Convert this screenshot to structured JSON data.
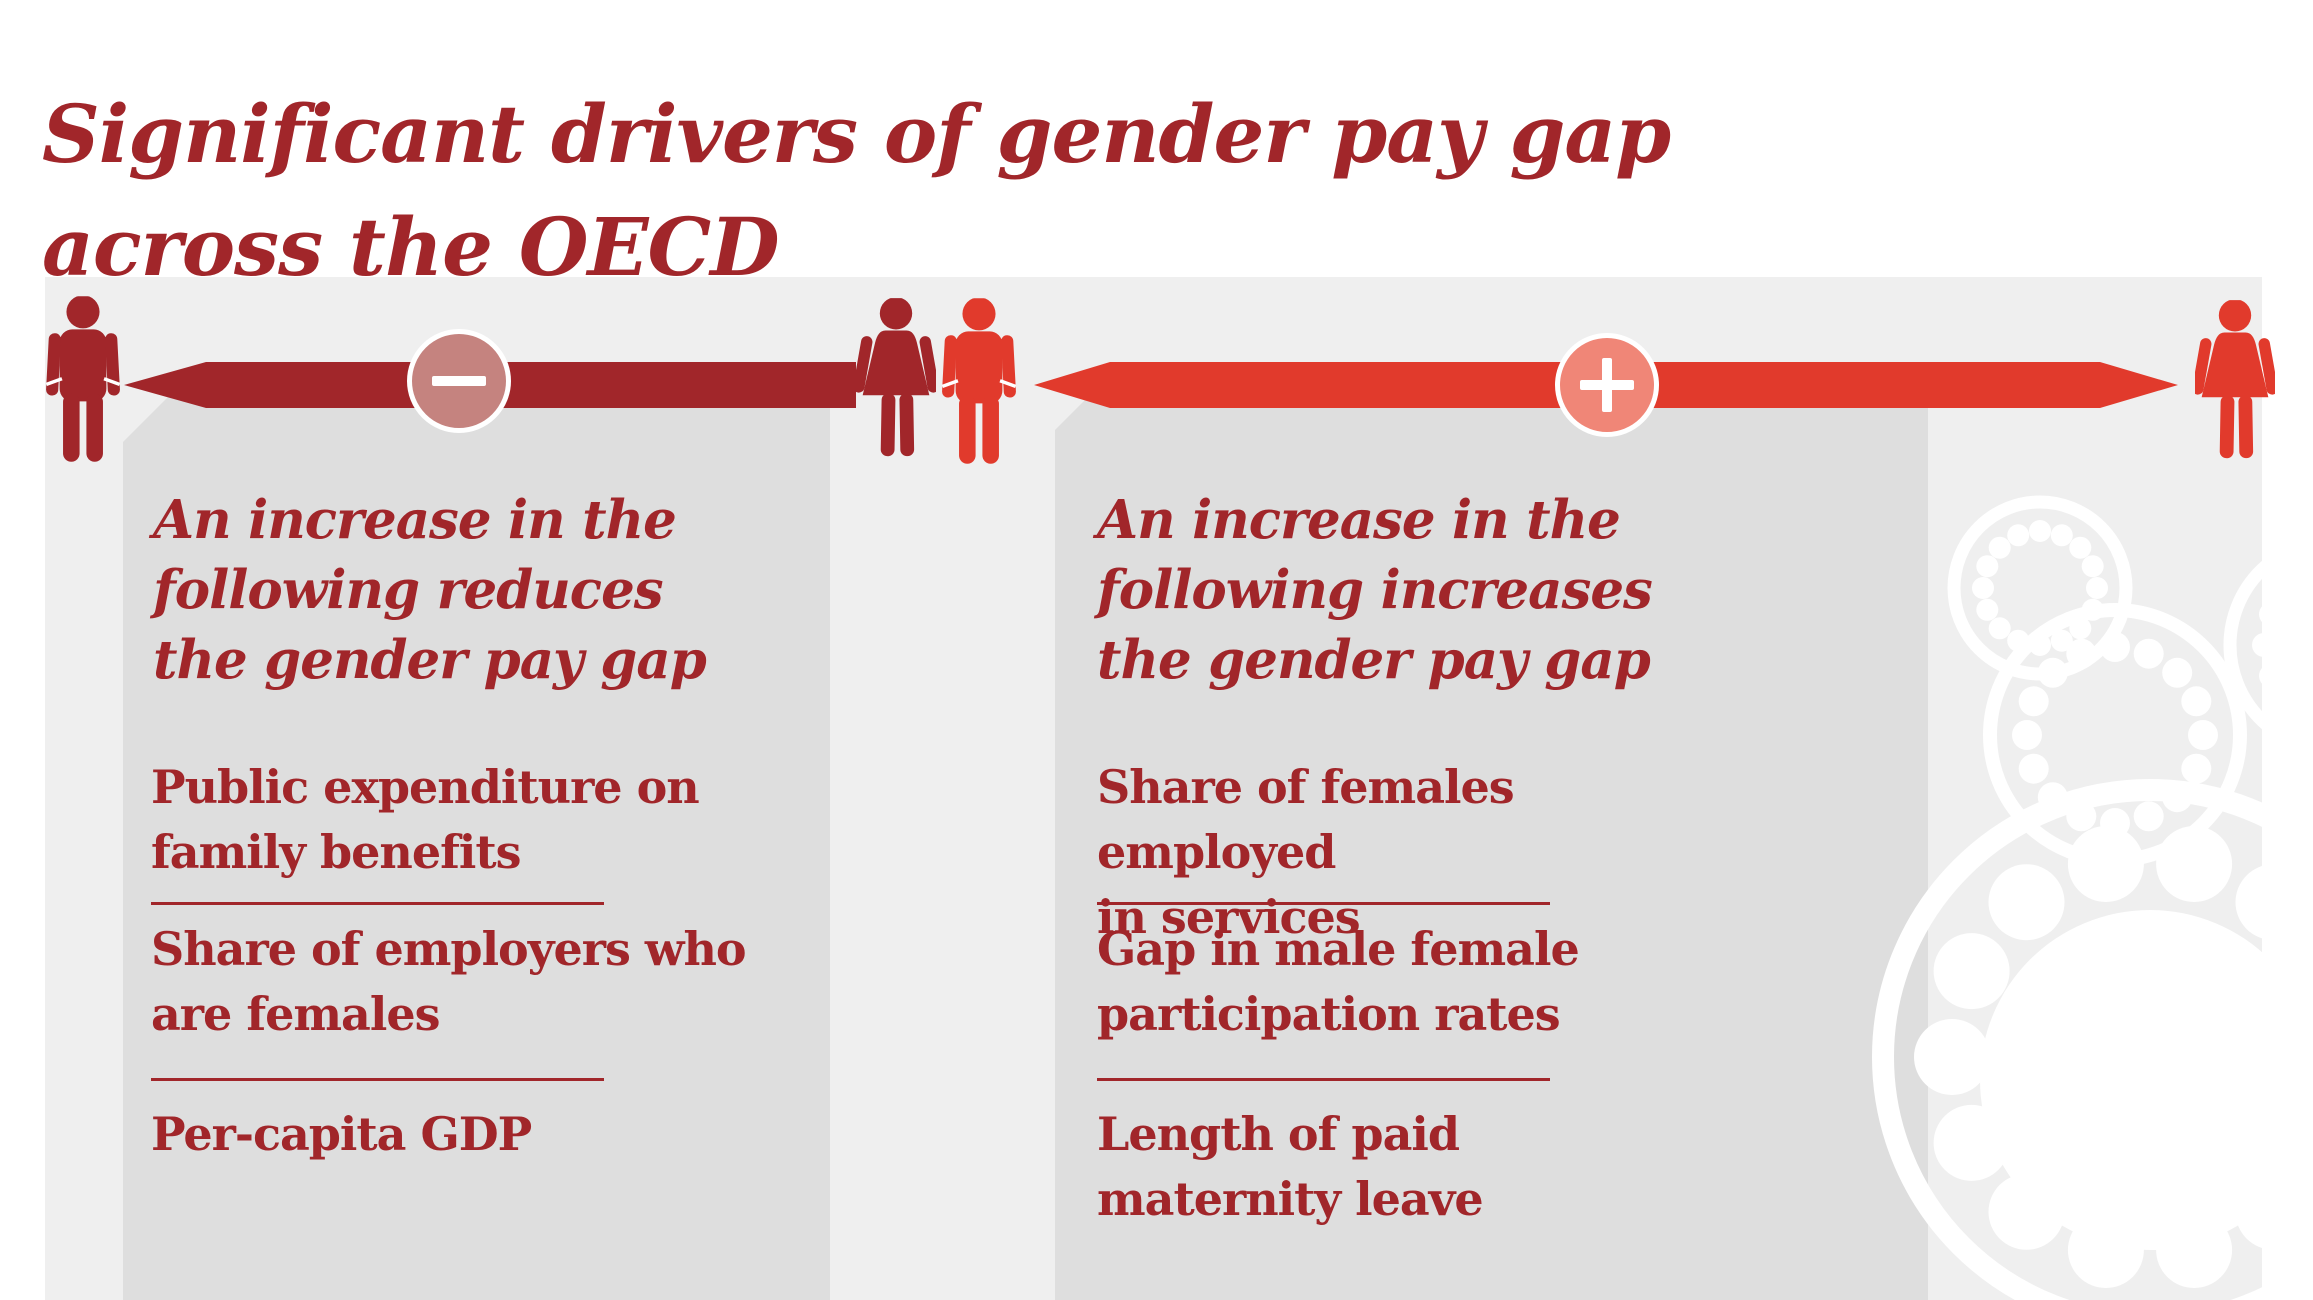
{
  "title": "Significant drivers of gender pay gap\nacross the OECD",
  "panels": {
    "reduce": {
      "sign": "minus",
      "heading": "An increase in the\nfollowing reduces\nthe gender pay gap",
      "items": [
        "Public expenditure on\nfamily benefits",
        "Share of employers who\nare females",
        "Per-capita GDP"
      ]
    },
    "increase": {
      "sign": "plus",
      "heading": "An increase in the\nfollowing increases\nthe gender pay gap",
      "items": [
        "Share of females employed\nin services",
        "Gap in male female\nparticipation rates",
        "Length of paid maternity leave"
      ]
    }
  },
  "colors": {
    "dark_red": "#a1262a",
    "bright_red": "#e13a2c",
    "minus_circle_fill": "#c5837f",
    "plus_circle_fill": "#f08677",
    "panel_gray": "#dedede",
    "background_gray": "#efefef",
    "decorative_white": "#ffffff"
  }
}
